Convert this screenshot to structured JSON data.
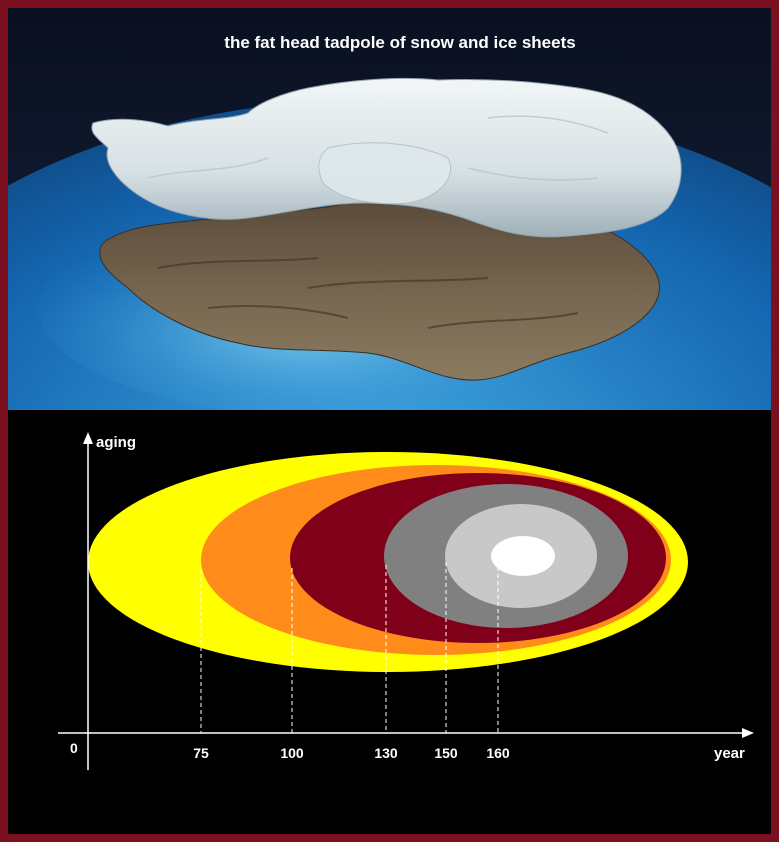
{
  "photo": {
    "title": "the fat head tadpole of snow and ice sheets",
    "image_description_icon": "antarctica-ice-sheet-illustration"
  },
  "diagram": {
    "y_axis_label": "aging",
    "x_axis_label": "year",
    "origin_label": "0",
    "ticks": [
      "75",
      "100",
      "130",
      "150",
      "160"
    ],
    "layer_colors": [
      "#ffff00",
      "#ff8c1a",
      "#80001a",
      "#808080",
      "#c8c8c8",
      "#ffffff"
    ]
  },
  "colors": {
    "frame": "#7a1020",
    "background": "#000000",
    "axis": "#ffffff"
  }
}
